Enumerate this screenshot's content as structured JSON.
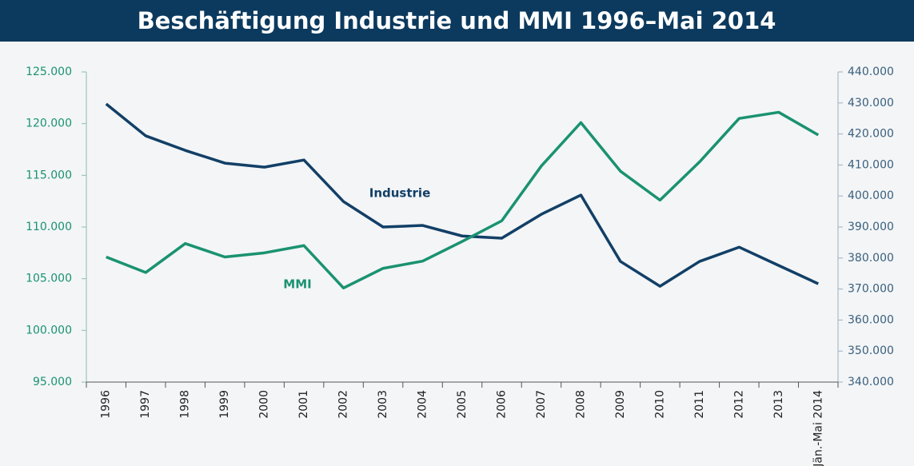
{
  "chart_data": {
    "type": "line",
    "title": "Beschäftigung Industrie und MMI 1996–Mai 2014",
    "categories": [
      "1996",
      "1997",
      "1998",
      "1999",
      "2000",
      "2001",
      "2002",
      "2003",
      "2004",
      "2005",
      "2006",
      "2007",
      "2008",
      "2009",
      "2010",
      "2011",
      "2012",
      "2013",
      "Jän.-Mai 2014"
    ],
    "series": [
      {
        "name": "Industrie",
        "color": "#123f66",
        "axis": "y2",
        "values": [
          429700,
          419400,
          414700,
          410600,
          409300,
          411600,
          398200,
          390000,
          390500,
          387100,
          386400,
          394100,
          400300,
          378900,
          370900,
          378900,
          383500,
          377600,
          371700
        ]
      },
      {
        "name": "MMI",
        "color": "#1a9270",
        "axis": "y",
        "values": [
          107100,
          105600,
          108400,
          107100,
          107500,
          108200,
          104100,
          106000,
          106700,
          108600,
          110600,
          115900,
          120100,
          115400,
          112600,
          116300,
          120500,
          121100,
          118900
        ]
      }
    ],
    "ylim": [
      95000,
      125000
    ],
    "yticks": [
      {
        "value": 95000,
        "label": "95.000"
      },
      {
        "value": 100000,
        "label": "100.000"
      },
      {
        "value": 105000,
        "label": "105.000"
      },
      {
        "value": 110000,
        "label": "110.000"
      },
      {
        "value": 115000,
        "label": "115.000"
      },
      {
        "value": 120000,
        "label": "120.000"
      },
      {
        "value": 125000,
        "label": "125.000"
      }
    ],
    "y2lim": [
      340000,
      440000
    ],
    "y2ticks": [
      {
        "value": 340000,
        "label": "340.000"
      },
      {
        "value": 350000,
        "label": "350.000"
      },
      {
        "value": 360000,
        "label": "360.000"
      },
      {
        "value": 370000,
        "label": "370.000"
      },
      {
        "value": 380000,
        "label": "380.000"
      },
      {
        "value": 390000,
        "label": "390.000"
      },
      {
        "value": 400000,
        "label": "400.000"
      },
      {
        "value": 410000,
        "label": "410.000"
      },
      {
        "value": 420000,
        "label": "420.000"
      },
      {
        "value": 430000,
        "label": "430.000"
      },
      {
        "value": 440000,
        "label": "440.000"
      }
    ]
  }
}
